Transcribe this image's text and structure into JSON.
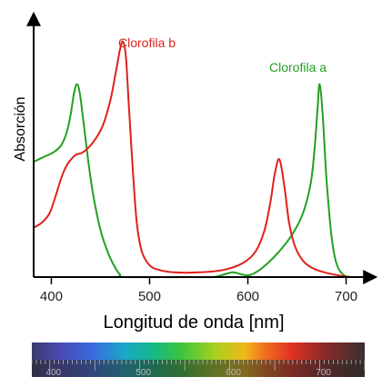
{
  "chart_data": {
    "type": "line",
    "title": "",
    "xlabel": "Longitud de onda [nm]",
    "ylabel": "Absorción",
    "xlim": [
      382,
      718
    ],
    "ylim": [
      0,
      1.0
    ],
    "x_ticks": [
      400,
      500,
      600,
      700
    ],
    "grid": false,
    "legend": "inline labels",
    "series": [
      {
        "name": "Clorofila a",
        "color": "#22a022",
        "points": [
          [
            382,
            0.49
          ],
          [
            392,
            0.51
          ],
          [
            402,
            0.53
          ],
          [
            410,
            0.56
          ],
          [
            416,
            0.62
          ],
          [
            420,
            0.7
          ],
          [
            423,
            0.78
          ],
          [
            426,
            0.82
          ],
          [
            429,
            0.78
          ],
          [
            433,
            0.65
          ],
          [
            438,
            0.48
          ],
          [
            443,
            0.34
          ],
          [
            450,
            0.2
          ],
          [
            458,
            0.1
          ],
          [
            465,
            0.04
          ],
          [
            470,
            0.01
          ],
          [
            475,
            0.0
          ],
          [
            540,
            0.0
          ],
          [
            565,
            0.0
          ],
          [
            575,
            0.01
          ],
          [
            585,
            0.02
          ],
          [
            595,
            0.01
          ],
          [
            603,
            0.01
          ],
          [
            615,
            0.04
          ],
          [
            630,
            0.1
          ],
          [
            645,
            0.18
          ],
          [
            656,
            0.27
          ],
          [
            664,
            0.4
          ],
          [
            668,
            0.55
          ],
          [
            671,
            0.72
          ],
          [
            673,
            0.82
          ],
          [
            676,
            0.7
          ],
          [
            680,
            0.42
          ],
          [
            685,
            0.18
          ],
          [
            690,
            0.06
          ],
          [
            697,
            0.01
          ],
          [
            705,
            0.0
          ]
        ]
      },
      {
        "name": "Clorofila b",
        "color": "#e0201c",
        "points": [
          [
            382,
            0.21
          ],
          [
            390,
            0.23
          ],
          [
            398,
            0.27
          ],
          [
            404,
            0.34
          ],
          [
            410,
            0.42
          ],
          [
            415,
            0.47
          ],
          [
            420,
            0.5
          ],
          [
            425,
            0.52
          ],
          [
            432,
            0.53
          ],
          [
            442,
            0.57
          ],
          [
            452,
            0.64
          ],
          [
            460,
            0.75
          ],
          [
            466,
            0.88
          ],
          [
            470,
            0.97
          ],
          [
            473,
            1.0
          ],
          [
            476,
            0.93
          ],
          [
            479,
            0.72
          ],
          [
            483,
            0.45
          ],
          [
            487,
            0.23
          ],
          [
            492,
            0.11
          ],
          [
            500,
            0.05
          ],
          [
            510,
            0.03
          ],
          [
            525,
            0.02
          ],
          [
            550,
            0.02
          ],
          [
            575,
            0.03
          ],
          [
            595,
            0.06
          ],
          [
            608,
            0.11
          ],
          [
            617,
            0.2
          ],
          [
            623,
            0.32
          ],
          [
            627,
            0.43
          ],
          [
            631,
            0.5
          ],
          [
            634,
            0.47
          ],
          [
            638,
            0.36
          ],
          [
            642,
            0.23
          ],
          [
            648,
            0.13
          ],
          [
            656,
            0.07
          ],
          [
            665,
            0.04
          ],
          [
            678,
            0.02
          ],
          [
            695,
            0.005
          ],
          [
            705,
            0.0
          ]
        ]
      }
    ]
  },
  "spectrum": {
    "tick_labels": [
      "400",
      "500",
      "600",
      "700"
    ]
  }
}
